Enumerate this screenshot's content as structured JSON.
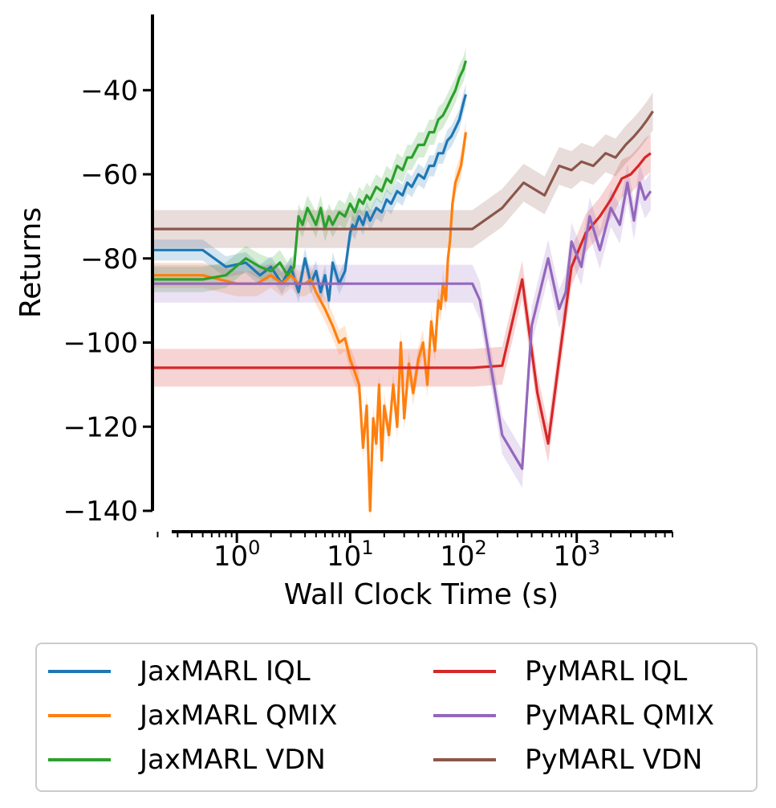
{
  "chart_data": {
    "type": "line",
    "title": "",
    "xlabel": "Wall Clock Time (s)",
    "ylabel": "Returns",
    "xscale": "log",
    "xlim": [
      0.18,
      7000
    ],
    "ylim": [
      -140,
      -22
    ],
    "x_ticks": [
      {
        "value": 1,
        "base": "10",
        "exp": "0"
      },
      {
        "value": 10,
        "base": "10",
        "exp": "1"
      },
      {
        "value": 100,
        "base": "10",
        "exp": "2"
      },
      {
        "value": 1000,
        "base": "10",
        "exp": "3"
      }
    ],
    "y_ticks": [
      -40,
      -60,
      -80,
      -100,
      -120,
      -140
    ],
    "y_tick_labels": [
      "−40",
      "−60",
      "−80",
      "−100",
      "−120",
      "−140"
    ],
    "grid": false,
    "legend_position": "bottom",
    "series": [
      {
        "name": "JaxMARL IQL",
        "color": "#1f77b4",
        "band": 2.5,
        "x": [
          0.18,
          0.5,
          0.8,
          1.2,
          1.6,
          2.0,
          2.5,
          3.0,
          3.5,
          4.0,
          4.5,
          5.0,
          5.5,
          6.0,
          6.5,
          7.0,
          8.0,
          9.0,
          10,
          10.5,
          11,
          12,
          13,
          14,
          15,
          17,
          19,
          21,
          23,
          26,
          29,
          32,
          35,
          40,
          45,
          50,
          55,
          60,
          66,
          72,
          78,
          85,
          92,
          100,
          105
        ],
        "y": [
          -78,
          -78,
          -82,
          -81,
          -84,
          -82,
          -86,
          -82,
          -88,
          -80,
          -86,
          -83,
          -88,
          -84,
          -90,
          -81,
          -86,
          -83,
          -74,
          -72,
          -73,
          -70,
          -72,
          -69,
          -71,
          -68,
          -69,
          -66,
          -67,
          -64,
          -65,
          -62,
          -63,
          -60,
          -61,
          -58,
          -58,
          -55,
          -55,
          -52,
          -51,
          -49,
          -47,
          -43,
          -41
        ]
      },
      {
        "name": "JaxMARL QMIX",
        "color": "#ff7f0e",
        "band": 3,
        "x": [
          0.18,
          0.5,
          1.0,
          1.5,
          2.0,
          2.5,
          3.0,
          3.5,
          4.0,
          4.5,
          5.0,
          6.0,
          7.0,
          8.0,
          9.0,
          10,
          11,
          12,
          13,
          14,
          15,
          16,
          17,
          18,
          19,
          20,
          22,
          24,
          26,
          28,
          30,
          33,
          36,
          40,
          44,
          48,
          52,
          56,
          60,
          63,
          66,
          70,
          73,
          76,
          80,
          85,
          90,
          95,
          100,
          105
        ],
        "y": [
          -84,
          -84,
          -86,
          -86,
          -84,
          -86,
          -84,
          -86,
          -86,
          -85,
          -88,
          -92,
          -96,
          -100,
          -99,
          -104,
          -107,
          -110,
          -125,
          -115,
          -140,
          -118,
          -124,
          -110,
          -128,
          -115,
          -122,
          -110,
          -120,
          -100,
          -118,
          -105,
          -112,
          -104,
          -100,
          -110,
          -95,
          -102,
          -90,
          -92,
          -86,
          -90,
          -80,
          -76,
          -67,
          -62,
          -60,
          -58,
          -54,
          -50
        ]
      },
      {
        "name": "JaxMARL VDN",
        "color": "#2ca02c",
        "band": 3,
        "x": [
          0.18,
          0.5,
          0.8,
          1.2,
          1.6,
          2.0,
          2.4,
          2.8,
          3.2,
          3.5,
          3.8,
          4.2,
          4.6,
          5.0,
          5.5,
          6.0,
          6.5,
          7.0,
          8.0,
          9.0,
          10,
          11,
          12,
          13,
          14,
          15,
          17,
          19,
          21,
          23,
          26,
          29,
          32,
          35,
          40,
          45,
          50,
          55,
          60,
          66,
          72,
          78,
          85,
          92,
          100,
          105
        ],
        "y": [
          -85,
          -85,
          -84,
          -80,
          -82,
          -83,
          -81,
          -84,
          -82,
          -70,
          -72,
          -68,
          -70,
          -72,
          -68,
          -73,
          -70,
          -72,
          -69,
          -70,
          -67,
          -69,
          -66,
          -67,
          -65,
          -66,
          -63,
          -64,
          -61,
          -62,
          -58,
          -59,
          -56,
          -56,
          -53,
          -53,
          -50,
          -50,
          -47,
          -46,
          -44,
          -42,
          -40,
          -37,
          -35,
          -33
        ]
      },
      {
        "name": "PyMARL IQL",
        "color": "#d62728",
        "band": 4.5,
        "x": [
          0.18,
          1,
          10,
          50,
          120,
          220,
          330,
          450,
          560,
          700,
          900,
          1200,
          1600,
          2000,
          2500,
          3000,
          3500,
          4000,
          4500
        ],
        "y": [
          -106,
          -106,
          -106,
          -106,
          -106,
          -105.5,
          -85,
          -112,
          -124,
          -104,
          -82,
          -74,
          -70,
          -66,
          -61,
          -60,
          -58,
          -56,
          -55
        ]
      },
      {
        "name": "PyMARL QMIX",
        "color": "#9467bd",
        "band": 4.5,
        "x": [
          0.18,
          1,
          10,
          50,
          120,
          140,
          220,
          330,
          400,
          560,
          700,
          800,
          900,
          1100,
          1300,
          1600,
          2000,
          2400,
          2800,
          3200,
          3600,
          4000,
          4500
        ],
        "y": [
          -86,
          -86,
          -86,
          -86,
          -86,
          -90,
          -122,
          -130,
          -96,
          -80,
          -92,
          -88,
          -76,
          -82,
          -70,
          -78,
          -68,
          -72,
          -62,
          -71,
          -62,
          -66,
          -64
        ]
      },
      {
        "name": "PyMARL VDN",
        "color": "#8c564b",
        "band": 4.5,
        "x": [
          0.18,
          1,
          10,
          50,
          120,
          220,
          340,
          520,
          700,
          900,
          1100,
          1400,
          1800,
          2200,
          2700,
          3200,
          3700,
          4200,
          4700
        ],
        "y": [
          -73,
          -73,
          -73,
          -73,
          -73,
          -68,
          -62,
          -65,
          -58,
          -59,
          -57,
          -58,
          -55,
          -56,
          -53,
          -51,
          -49,
          -47,
          -45
        ]
      }
    ]
  }
}
